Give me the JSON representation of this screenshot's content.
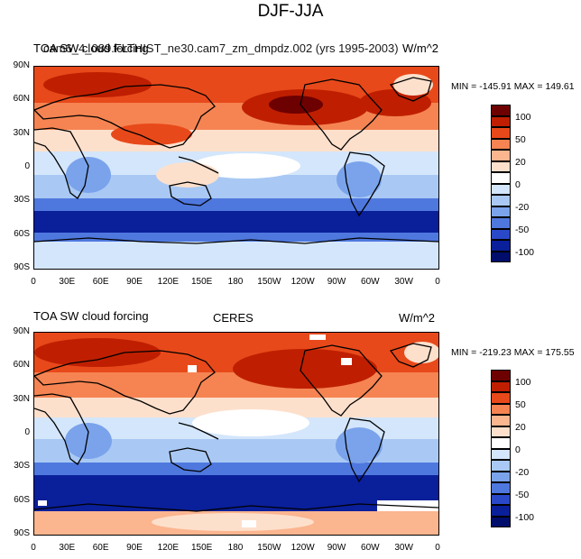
{
  "title": "DJF-JJA",
  "panels": [
    {
      "id": "model",
      "left_title": "TOA SW cloud forcing",
      "center_title": "cam6_4_089.FLTHIST_ne30.cam7_zm_dmpdz.002 (yrs 1995-2003)",
      "right_title": "W/m^2",
      "min_max": "MIN = -145.91 MAX = 149.61",
      "has_missing_patches": false
    },
    {
      "id": "obs",
      "left_title": "TOA SW cloud forcing",
      "center_title": "CERES",
      "right_title": "W/m^2",
      "min_max": "MIN = -219.23 MAX = 175.55",
      "has_missing_patches": true
    }
  ],
  "lat_ticks": [
    "90N",
    "60N",
    "30N",
    "0",
    "30S",
    "60S",
    "90S"
  ],
  "lon_ticks": [
    "0",
    "30E",
    "60E",
    "90E",
    "120E",
    "150E",
    "180",
    "150W",
    "120W",
    "90W",
    "60W",
    "30W",
    "0"
  ],
  "colorbar": {
    "labels": [
      "100",
      "50",
      "20",
      "0",
      "-20",
      "-50",
      "-100"
    ],
    "colors": [
      "#6d0000",
      "#bf1f00",
      "#e8491a",
      "#f58452",
      "#fbb58f",
      "#fde0cc",
      "#ffffff",
      "#d4e6fb",
      "#a9c9f4",
      "#7aa3eb",
      "#4f78de",
      "#2a49c8",
      "#0a1f9a",
      "#000d6b"
    ]
  }
}
